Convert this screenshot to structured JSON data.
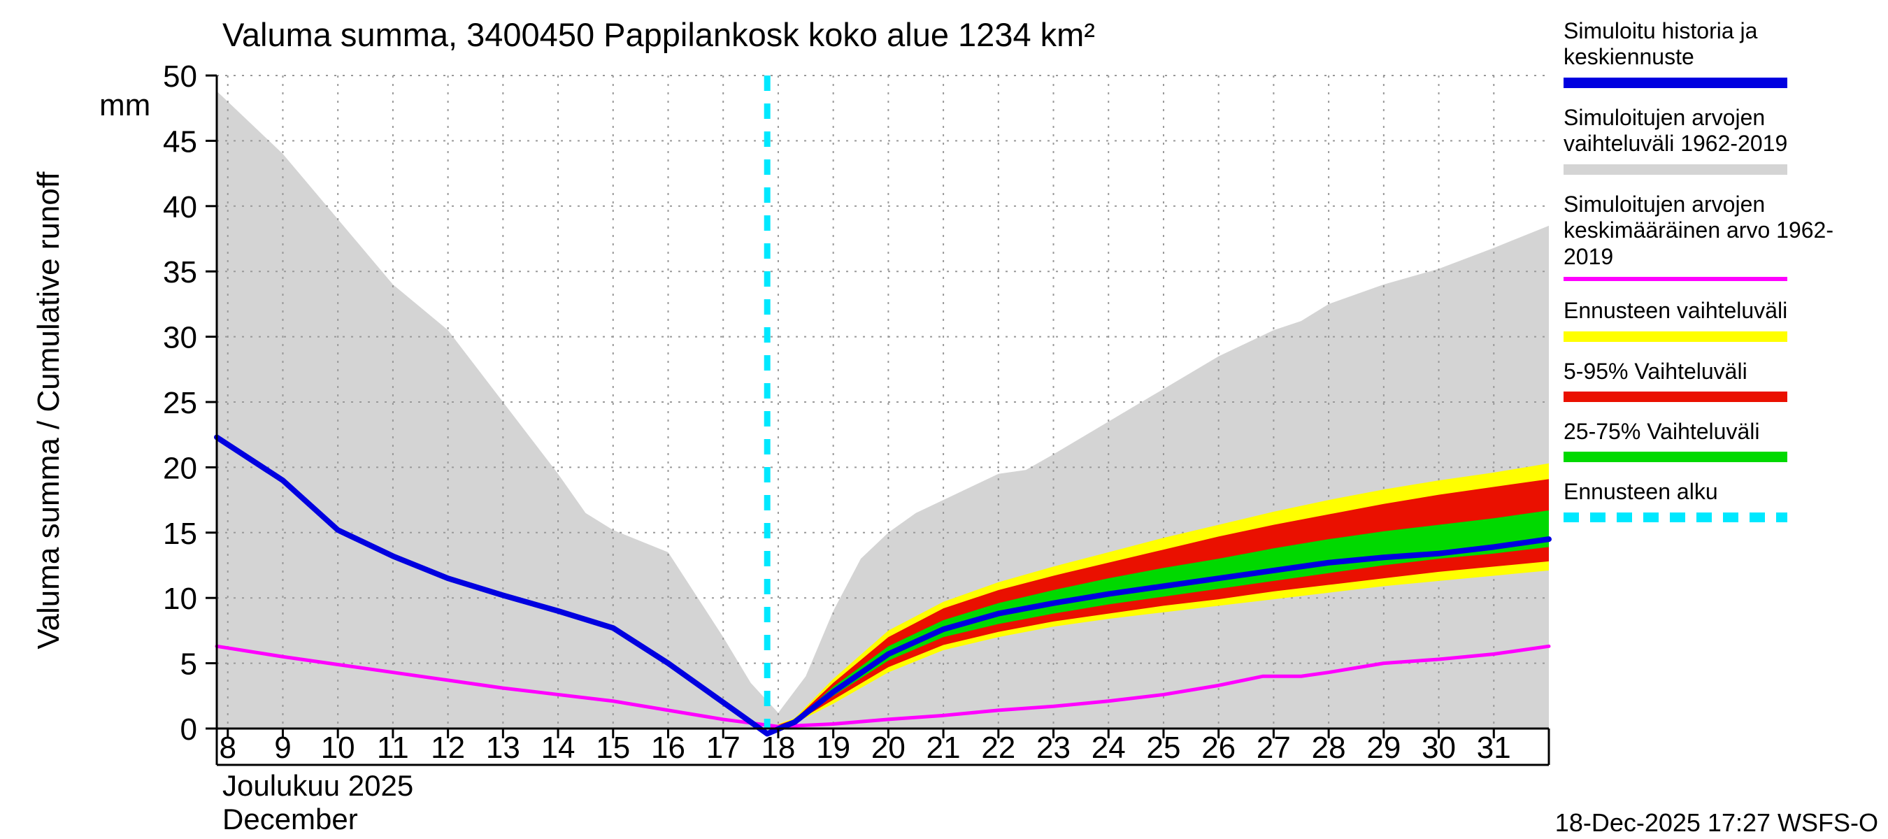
{
  "chart_data": {
    "type": "area",
    "title": "Valuma summa, 3400450 Pappilankosk koko alue 1234 km²",
    "ylabel": "Valuma summa / Cumulative runoff",
    "y_unit": "mm",
    "xlabel_fi": "Joulukuu 2025",
    "xlabel_en": "December",
    "ylim": [
      0,
      50
    ],
    "xlim": [
      7.8,
      32
    ],
    "xticks": [
      8,
      9,
      10,
      11,
      12,
      13,
      14,
      15,
      16,
      17,
      18,
      19,
      20,
      21,
      22,
      23,
      24,
      25,
      26,
      27,
      28,
      29,
      30,
      31
    ],
    "yticks": [
      0,
      5,
      10,
      15,
      20,
      25,
      30,
      35,
      40,
      45,
      50
    ],
    "grid": true,
    "forecast_start_x": 17.8,
    "bands": [
      {
        "name": "simulated-range-1962-2019",
        "color": "#d4d4d4",
        "x": [
          7.8,
          9,
          10,
          11,
          12,
          13,
          14,
          14.5,
          15,
          16,
          17,
          17.5,
          18,
          18.5,
          19,
          19.5,
          20,
          20.5,
          21,
          22,
          22.5,
          23,
          24,
          25,
          26,
          27,
          27.5,
          28,
          29,
          30,
          31,
          32
        ],
        "upper": [
          48.8,
          44,
          39,
          34,
          30.5,
          25,
          19.5,
          16.5,
          15.2,
          13.5,
          7,
          3.5,
          1.2,
          4,
          9,
          13,
          15,
          16.5,
          17.5,
          19.5,
          19.8,
          21,
          23.5,
          26,
          28.5,
          30.5,
          31.2,
          32.5,
          34,
          35.2,
          36.8,
          38.5
        ],
        "lower": 0
      },
      {
        "name": "forecast-range",
        "color": "#ffff00",
        "x": [
          17.8,
          18.3,
          19,
          20,
          21,
          22,
          23,
          24,
          25,
          26,
          27,
          28,
          29,
          30,
          31,
          32
        ],
        "upper": [
          0,
          0.8,
          3.8,
          7.5,
          9.7,
          11.2,
          12.4,
          13.5,
          14.6,
          15.6,
          16.6,
          17.5,
          18.3,
          19,
          19.6,
          20.3
        ],
        "lower": [
          0,
          0.4,
          1.9,
          4.3,
          6,
          7,
          7.8,
          8.4,
          8.9,
          9.4,
          9.9,
          10.4,
          10.9,
          11.3,
          11.7,
          12.1
        ]
      },
      {
        "name": "range-5-95",
        "color": "#ea1000",
        "x": [
          17.8,
          18.3,
          19,
          20,
          21,
          22,
          23,
          24,
          25,
          26,
          27,
          28,
          29,
          30,
          31,
          32
        ],
        "upper": [
          0,
          0.7,
          3.5,
          7,
          9.2,
          10.6,
          11.7,
          12.7,
          13.7,
          14.7,
          15.6,
          16.4,
          17.2,
          17.9,
          18.5,
          19.1
        ],
        "lower": [
          0,
          0.45,
          2.2,
          4.7,
          6.4,
          7.4,
          8.2,
          8.8,
          9.4,
          9.9,
          10.5,
          11,
          11.5,
          12,
          12.4,
          12.8
        ]
      },
      {
        "name": "range-25-75",
        "color": "#00d900",
        "x": [
          17.8,
          18.3,
          19,
          20,
          21,
          22,
          23,
          24,
          25,
          26,
          27,
          28,
          29,
          30,
          31,
          32
        ],
        "upper": [
          0,
          0.6,
          3.2,
          6.3,
          8.3,
          9.6,
          10.6,
          11.5,
          12.3,
          13,
          13.8,
          14.5,
          15.1,
          15.6,
          16.1,
          16.7
        ],
        "lower": [
          0,
          0.5,
          2.5,
          5.2,
          7,
          8,
          8.8,
          9.5,
          10.1,
          10.7,
          11.3,
          11.9,
          12.5,
          13,
          13.4,
          13.9
        ]
      }
    ],
    "lines": [
      {
        "name": "simulated-mean-1962-2019",
        "color": "#ff00ff",
        "width": 5,
        "x": [
          7.8,
          9,
          10,
          11,
          12,
          13,
          14,
          15,
          16,
          17,
          18,
          19,
          20,
          21,
          22,
          23,
          24,
          25,
          26,
          26.8,
          27.5,
          28,
          29,
          30,
          31,
          32
        ],
        "y": [
          6.3,
          5.5,
          4.9,
          4.3,
          3.7,
          3.1,
          2.6,
          2.1,
          1.4,
          0.7,
          0.15,
          0.35,
          0.7,
          1,
          1.4,
          1.7,
          2.1,
          2.6,
          3.3,
          4,
          4,
          4.3,
          5,
          5.3,
          5.7,
          6.3
        ]
      },
      {
        "name": "simulated-history-and-mean-forecast",
        "color": "#0000e0",
        "width": 8,
        "x": [
          7.8,
          9,
          10,
          11,
          12,
          13,
          14,
          15,
          16,
          17,
          17.8,
          18.3,
          19,
          20,
          21,
          22,
          23,
          24,
          25,
          26,
          27,
          28,
          29,
          30,
          31,
          32
        ],
        "y": [
          22.3,
          19,
          15.2,
          13.2,
          11.5,
          10.2,
          9,
          7.7,
          5,
          2,
          -0.4,
          0.5,
          2.8,
          5.7,
          7.6,
          8.8,
          9.6,
          10.3,
          10.9,
          11.5,
          12.1,
          12.7,
          13.1,
          13.4,
          13.9,
          14.5
        ]
      }
    ],
    "vline": {
      "name": "forecast-start",
      "x": 17.8,
      "color": "#00e8ff",
      "dashed": true
    }
  },
  "legend": {
    "items": [
      {
        "label": "Simuloitu historia ja keskiennuste",
        "color": "#0000e0",
        "thickness": 15,
        "dashed": false
      },
      {
        "label": "Simuloitujen arvojen vaihteluväli 1962-2019",
        "color": "#d4d4d4",
        "thickness": 15,
        "dashed": false
      },
      {
        "label": "Simuloitujen arvojen keskimääräinen arvo 1962-2019",
        "color": "#ff00ff",
        "thickness": 6,
        "dashed": false
      },
      {
        "label": "Ennusteen vaihteluväli",
        "color": "#ffff00",
        "thickness": 15,
        "dashed": false
      },
      {
        "label": "5-95% Vaihteluväli",
        "color": "#ea1000",
        "thickness": 15,
        "dashed": false
      },
      {
        "label": "25-75% Vaihteluväli",
        "color": "#00d900",
        "thickness": 15,
        "dashed": false
      },
      {
        "label": "Ennusteen alku",
        "color": "#00e8ff",
        "thickness": 14,
        "dashed": true
      }
    ]
  },
  "footer": {
    "timestamp": "18-Dec-2025 17:27 WSFS-O"
  }
}
